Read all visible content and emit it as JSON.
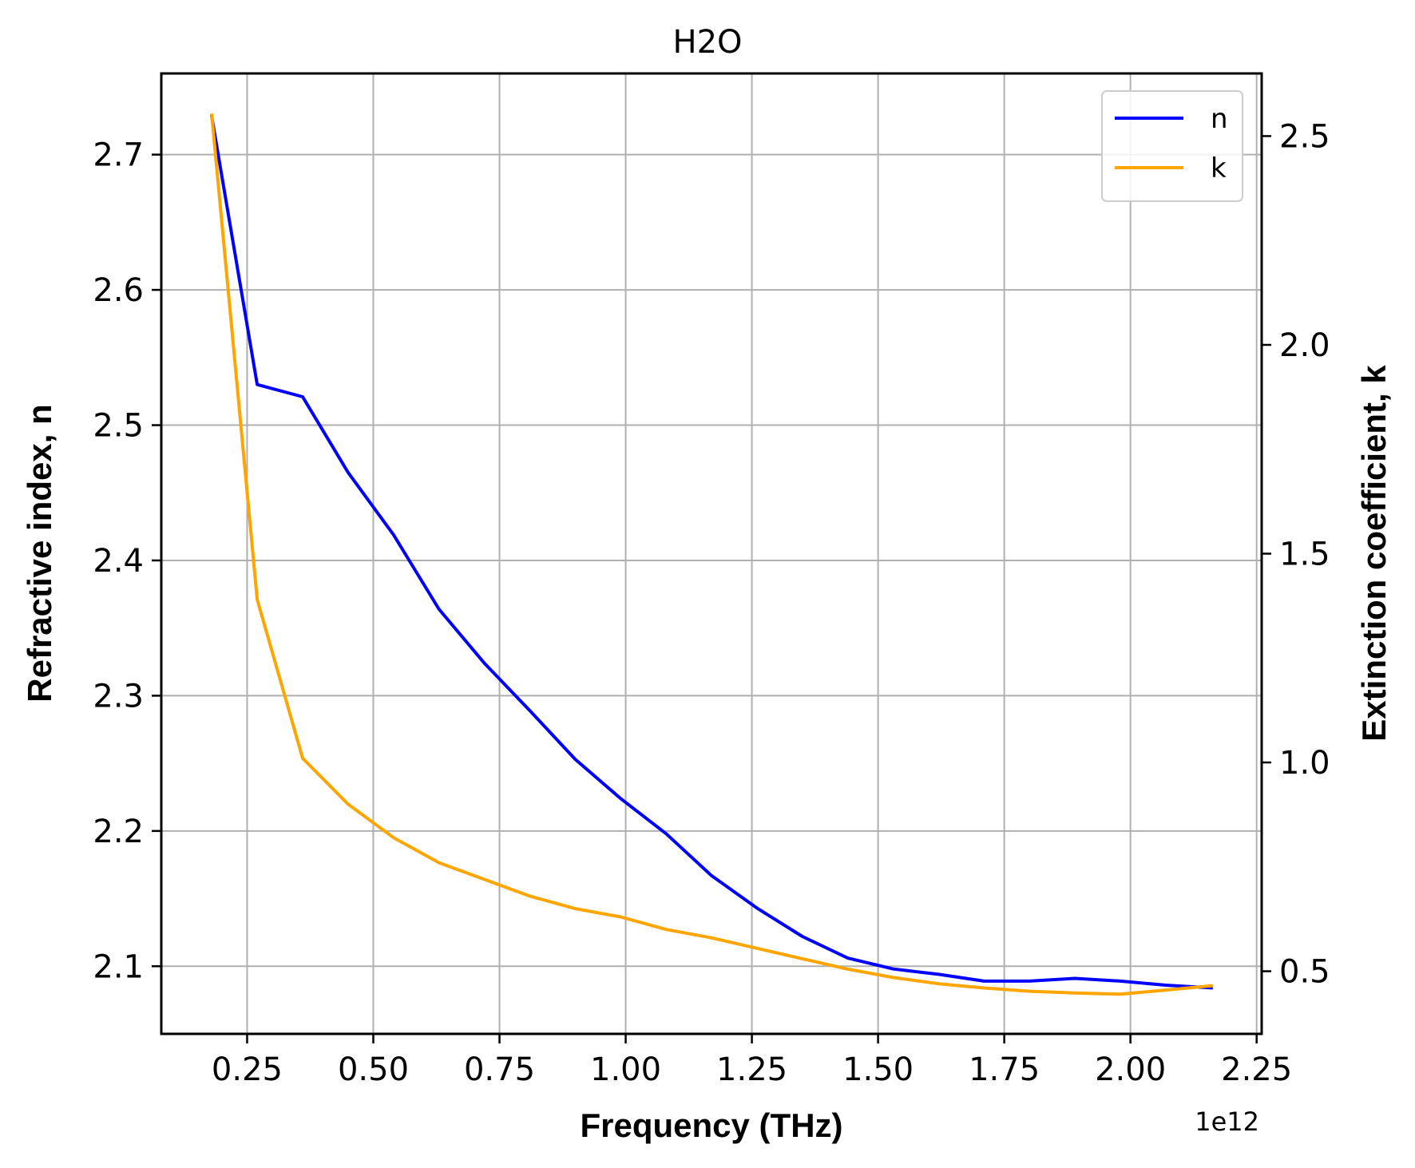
{
  "chart_data": {
    "type": "line",
    "title": "H2O",
    "xlabel": "Frequency (THz)",
    "ylabel": "Refractive index, n",
    "y2label": "Extinction coefficient, k",
    "x_offset_label": "1e12",
    "xlim": [
      0.08,
      2.26
    ],
    "ylim": [
      2.05,
      2.76
    ],
    "y2lim": [
      0.35,
      2.65
    ],
    "x_ticks": [
      0.25,
      0.5,
      0.75,
      1.0,
      1.25,
      1.5,
      1.75,
      2.0,
      2.25
    ],
    "x_tick_labels": [
      "0.25",
      "0.50",
      "0.75",
      "1.00",
      "1.25",
      "1.50",
      "1.75",
      "2.00",
      "2.25"
    ],
    "y_ticks": [
      2.1,
      2.2,
      2.3,
      2.4,
      2.5,
      2.6,
      2.7
    ],
    "y_tick_labels": [
      "2.1",
      "2.2",
      "2.3",
      "2.4",
      "2.5",
      "2.6",
      "2.7"
    ],
    "y2_ticks": [
      0.5,
      1.0,
      1.5,
      2.0,
      2.5
    ],
    "y2_tick_labels": [
      "0.5",
      "1.0",
      "1.5",
      "2.0",
      "2.5"
    ],
    "grid": true,
    "legend_position": "top-right",
    "x": [
      0.18,
      0.27,
      0.36,
      0.45,
      0.54,
      0.63,
      0.72,
      0.81,
      0.9,
      0.99,
      1.08,
      1.17,
      1.26,
      1.35,
      1.44,
      1.53,
      1.62,
      1.71,
      1.8,
      1.89,
      1.98,
      2.07,
      2.16
    ],
    "series": [
      {
        "name": "n",
        "color": "#0000ff",
        "axis": "left",
        "values": [
          2.728,
          2.53,
          2.521,
          2.465,
          2.419,
          2.364,
          2.324,
          2.289,
          2.253,
          2.224,
          2.198,
          2.167,
          2.143,
          2.122,
          2.106,
          2.098,
          2.094,
          2.089,
          2.089,
          2.091,
          2.089,
          2.086,
          2.084
        ]
      },
      {
        "name": "k",
        "color": "#ffa500",
        "axis": "right",
        "values": [
          2.55,
          1.39,
          1.01,
          0.9,
          0.82,
          0.76,
          0.72,
          0.68,
          0.65,
          0.63,
          0.6,
          0.58,
          0.555,
          0.53,
          0.505,
          0.485,
          0.47,
          0.46,
          0.452,
          0.448,
          0.445,
          0.455,
          0.465
        ]
      }
    ]
  }
}
